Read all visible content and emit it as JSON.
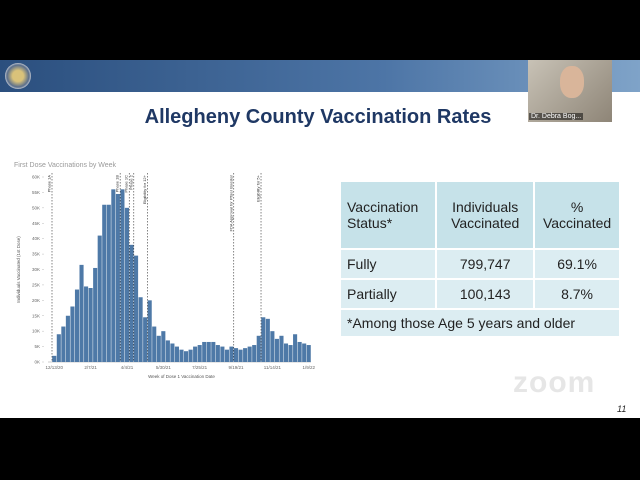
{
  "meeting": {
    "participant_name": "Dr. Debra Bog..."
  },
  "slide": {
    "title": "Allegheny County Vaccination Rates",
    "page_number": "11",
    "watermark": "zoom"
  },
  "chart_data": {
    "type": "bar",
    "title": "First Dose Vaccinations by Week",
    "x_label": "Week of Dose 1 Vaccination Date",
    "y_label": "Individuals Vaccinated (1st Dose)",
    "color": "#4e79a7",
    "categories": [
      "12/13/20",
      null,
      null,
      null,
      null,
      null,
      null,
      null,
      "2/7/21",
      null,
      null,
      null,
      null,
      null,
      null,
      null,
      "4/4/21",
      null,
      null,
      null,
      null,
      null,
      null,
      null,
      "5/30/21",
      null,
      null,
      null,
      null,
      null,
      null,
      null,
      "7/25/21",
      null,
      null,
      null,
      null,
      null,
      null,
      null,
      "9/19/21",
      null,
      null,
      null,
      null,
      null,
      null,
      null,
      "11/14/21",
      null,
      null,
      null,
      null,
      null,
      null,
      null,
      "1/9/22"
    ],
    "values": [
      2000,
      9000,
      11500,
      15000,
      18000,
      23500,
      31500,
      24500,
      24000,
      30500,
      41000,
      51000,
      51000,
      56000,
      54500,
      56000,
      50000,
      38000,
      34500,
      21000,
      14500,
      20000,
      11500,
      8500,
      10000,
      7000,
      6000,
      5000,
      4000,
      3500,
      4000,
      5000,
      5500,
      6500,
      6500,
      6500,
      5500,
      5000,
      4000,
      5000,
      4500,
      4000,
      4500,
      5000,
      5500,
      8500,
      14500,
      14000,
      10000,
      7500,
      8500,
      6000,
      5500,
      9000,
      6500,
      6000,
      5500
    ],
    "ylim": [
      0,
      60000
    ],
    "yticks": [
      {
        "value": 0,
        "label": "0K"
      },
      {
        "value": 5000,
        "label": "5K"
      },
      {
        "value": 10000,
        "label": "10K"
      },
      {
        "value": 15000,
        "label": "15K"
      },
      {
        "value": 20000,
        "label": "20K"
      },
      {
        "value": 25000,
        "label": "25K"
      },
      {
        "value": 30000,
        "label": "30K"
      },
      {
        "value": 35000,
        "label": "35K"
      },
      {
        "value": 40000,
        "label": "40K"
      },
      {
        "value": 45000,
        "label": "45K"
      },
      {
        "value": 50000,
        "label": "50K"
      },
      {
        "value": 55000,
        "label": "55K"
      },
      {
        "value": 60000,
        "label": "60K"
      }
    ],
    "annotations": [
      {
        "label": "Phase 1A",
        "category_index": 0
      },
      {
        "label": "Phase 1B",
        "category_index": 15
      },
      {
        "label": "Phase 1C",
        "category_index": 17
      },
      {
        "label": "Phase 2",
        "category_index": 18
      },
      {
        "label": "Eligibility for 12+",
        "category_index": 21
      },
      {
        "label": "FDA Approval for Pfizer Booster",
        "category_index": 40
      },
      {
        "label": "Eligibility for 5+",
        "category_index": 46
      }
    ]
  },
  "table": {
    "header": [
      "Vaccination Status*",
      "Individuals Vaccinated",
      "% Vaccinated"
    ],
    "rows": [
      [
        "Fully",
        "799,747",
        "69.1%"
      ],
      [
        "Partially",
        "100,143",
        "8.7%"
      ]
    ],
    "footnote": "*Among those Age 5 years and older"
  }
}
